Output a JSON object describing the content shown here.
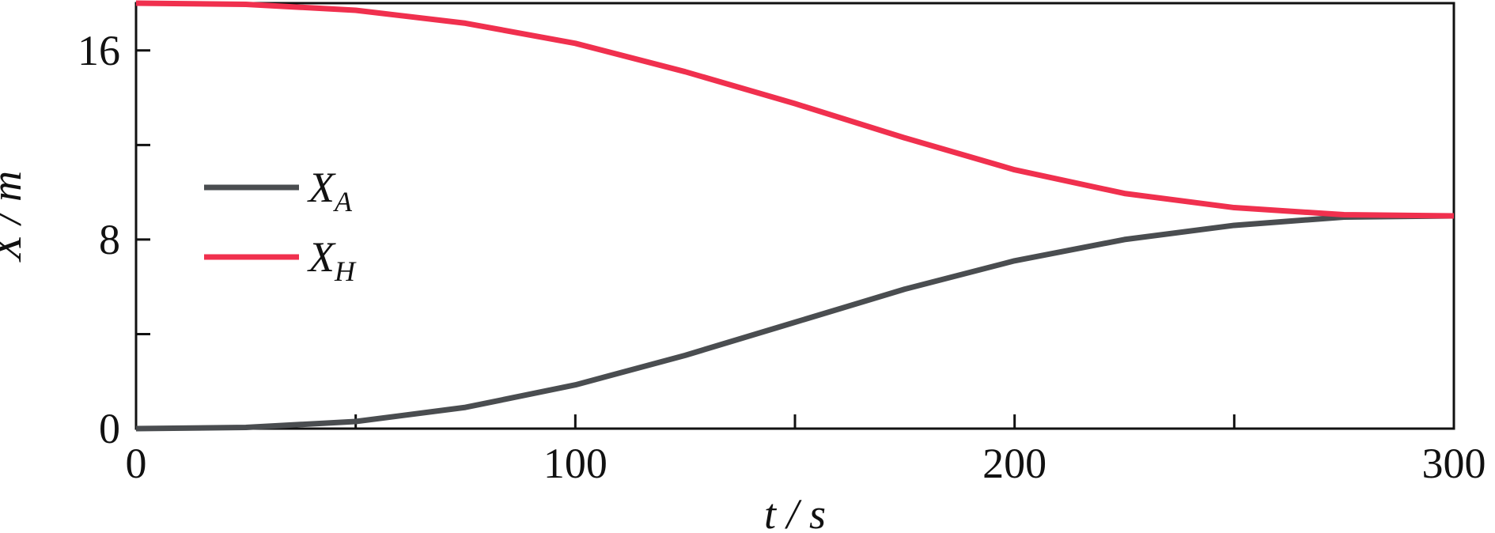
{
  "chart_data": {
    "type": "line",
    "xlabel": "t / s",
    "ylabel": "X / m",
    "x": [
      0,
      25,
      50,
      75,
      100,
      125,
      150,
      175,
      200,
      225,
      250,
      275,
      300
    ],
    "series": [
      {
        "name": "XA",
        "color": "#4a4d50",
        "values": [
          0,
          0.05,
          0.3,
          0.9,
          1.85,
          3.1,
          4.5,
          5.9,
          7.1,
          8.0,
          8.6,
          8.95,
          9.0
        ]
      },
      {
        "name": "XH",
        "color": "#f0304e",
        "values": [
          18,
          17.95,
          17.7,
          17.15,
          16.3,
          15.1,
          13.75,
          12.3,
          10.95,
          9.95,
          9.35,
          9.05,
          9.0
        ]
      }
    ],
    "xlim": [
      0,
      300
    ],
    "xticks": [
      0,
      100,
      200,
      300
    ],
    "xminorticks": [
      50,
      150,
      250
    ],
    "ylim": [
      0,
      18
    ],
    "yticks": [
      0,
      8,
      16
    ],
    "yminorticks": [
      4,
      12
    ],
    "legend": "left"
  }
}
